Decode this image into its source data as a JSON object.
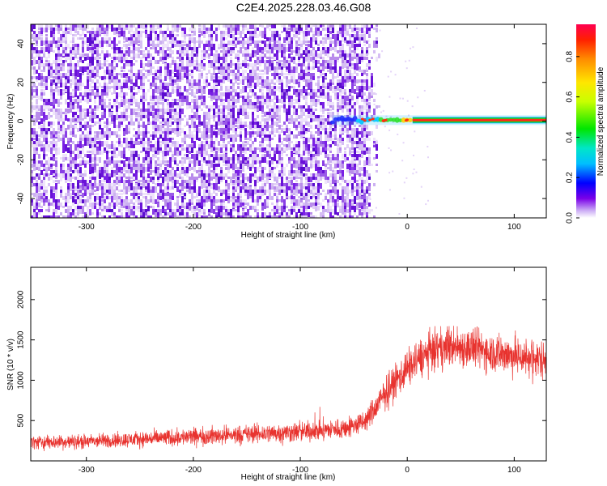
{
  "title": "C2E4.2025.228.03.46.G08",
  "colors": {
    "snr_line": "#e8332f",
    "spectrogram_noise": "#6a1de6",
    "frame": "#000000"
  },
  "chart_data": [
    {
      "type": "heatmap",
      "xlabel": "Height of straight line (km)",
      "ylabel": "Frequency (Hz)",
      "xlim": [
        -352,
        130
      ],
      "ylim": [
        -50,
        50
      ],
      "xticks": [
        -300,
        -200,
        -100,
        0,
        100
      ],
      "yticks": [
        -40,
        -20,
        0,
        20,
        40
      ],
      "colorbar": {
        "label": "Normalized spectral amplitude",
        "range": [
          0,
          0.96
        ],
        "ticks": [
          "0.0",
          "0.2",
          "0.4",
          "0.6",
          "0.8"
        ],
        "colormap": "rainbow (violet to red)"
      },
      "features": {
        "noise_region_x": [
          -352,
          -40
        ],
        "signal_line_frequency": 0.5,
        "signal_onset_x": -70,
        "signal_strong_from_x": 5,
        "signal_peak_amplitude": 0.95
      }
    },
    {
      "type": "line",
      "xlabel": "Height of straight line (km)",
      "ylabel": "SNR (10 * v/v)",
      "xlim": [
        -352,
        130
      ],
      "ylim": [
        0,
        2400
      ],
      "xticks": [
        -300,
        -200,
        -100,
        0,
        100
      ],
      "yticks": [
        500,
        1000,
        1500,
        2000
      ],
      "envelope": [
        {
          "x": -352,
          "mean": 230,
          "spread": 130
        },
        {
          "x": -300,
          "mean": 240,
          "spread": 130
        },
        {
          "x": -250,
          "mean": 270,
          "spread": 140
        },
        {
          "x": -200,
          "mean": 300,
          "spread": 160
        },
        {
          "x": -150,
          "mean": 330,
          "spread": 170
        },
        {
          "x": -100,
          "mean": 360,
          "spread": 180
        },
        {
          "x": -60,
          "mean": 400,
          "spread": 190
        },
        {
          "x": -40,
          "mean": 480,
          "spread": 200
        },
        {
          "x": -30,
          "mean": 650,
          "spread": 250
        },
        {
          "x": -20,
          "mean": 850,
          "spread": 300
        },
        {
          "x": -10,
          "mean": 1000,
          "spread": 320
        },
        {
          "x": 0,
          "mean": 1150,
          "spread": 340
        },
        {
          "x": 20,
          "mean": 1350,
          "spread": 360
        },
        {
          "x": 40,
          "mean": 1420,
          "spread": 370
        },
        {
          "x": 60,
          "mean": 1400,
          "spread": 370
        },
        {
          "x": 80,
          "mean": 1350,
          "spread": 360
        },
        {
          "x": 100,
          "mean": 1300,
          "spread": 360
        },
        {
          "x": 130,
          "mean": 1250,
          "spread": 350
        }
      ]
    }
  ]
}
